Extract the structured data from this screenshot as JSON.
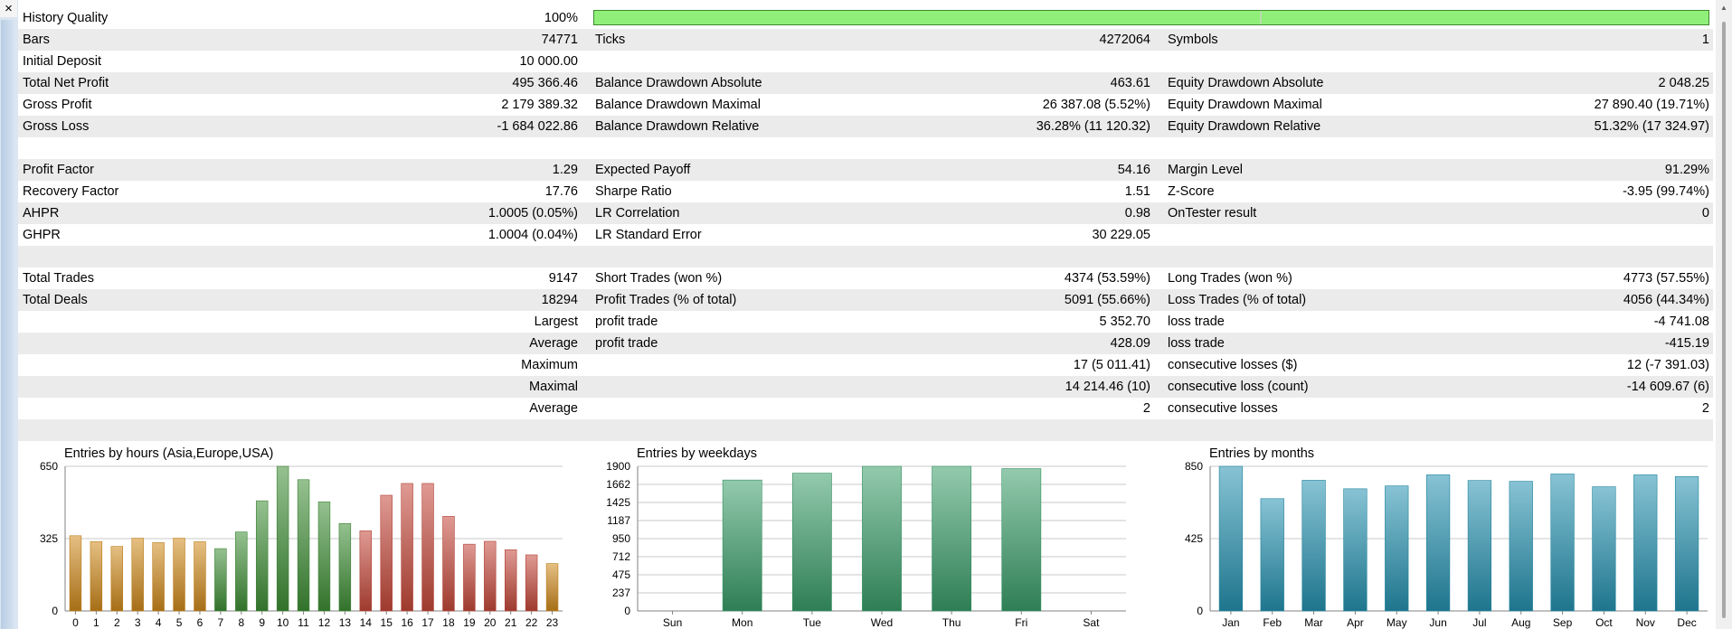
{
  "window": {
    "close_glyph": "×"
  },
  "summary": {
    "history_quality": {
      "label": "History Quality",
      "value": "100%",
      "fraction": 1.0
    },
    "rows": [
      {
        "l1": "Bars",
        "v1": "74771",
        "l2": "Ticks",
        "v2": "4272064",
        "l3": "Symbols",
        "v3": "1"
      },
      {
        "l1": "Initial Deposit",
        "v1": "10 000.00",
        "l2": "",
        "v2": "",
        "l3": "",
        "v3": ""
      },
      {
        "l1": "Total Net Profit",
        "v1": "495 366.46",
        "l2": "Balance Drawdown Absolute",
        "v2": "463.61",
        "l3": "Equity Drawdown Absolute",
        "v3": "2 048.25"
      },
      {
        "l1": "Gross Profit",
        "v1": "2 179 389.32",
        "l2": "Balance Drawdown Maximal",
        "v2": "26 387.08 (5.52%)",
        "l3": "Equity Drawdown Maximal",
        "v3": "27 890.40 (19.71%)"
      },
      {
        "l1": "Gross Loss",
        "v1": "-1 684 022.86",
        "l2": "Balance Drawdown Relative",
        "v2": "36.28% (11 120.32)",
        "l3": "Equity Drawdown Relative",
        "v3": "51.32% (17 324.97)"
      },
      {
        "l1": "",
        "v1": "",
        "l2": "",
        "v2": "",
        "l3": "",
        "v3": ""
      },
      {
        "l1": "Profit Factor",
        "v1": "1.29",
        "l2": "Expected Payoff",
        "v2": "54.16",
        "l3": "Margin Level",
        "v3": "91.29%"
      },
      {
        "l1": "Recovery Factor",
        "v1": "17.76",
        "l2": "Sharpe Ratio",
        "v2": "1.51",
        "l3": "Z-Score",
        "v3": "-3.95 (99.74%)"
      },
      {
        "l1": "AHPR",
        "v1": "1.0005 (0.05%)",
        "l2": "LR Correlation",
        "v2": "0.98",
        "l3": "OnTester result",
        "v3": "0"
      },
      {
        "l1": "GHPR",
        "v1": "1.0004 (0.04%)",
        "l2": "LR Standard Error",
        "v2": "30 229.05",
        "l3": "",
        "v3": ""
      },
      {
        "l1": "",
        "v1": "",
        "l2": "",
        "v2": "",
        "l3": "",
        "v3": ""
      },
      {
        "l1": "Total Trades",
        "v1": "9147",
        "l2": "Short Trades (won %)",
        "v2": "4374 (53.59%)",
        "l3": "Long Trades (won %)",
        "v3": "4773 (57.55%)"
      },
      {
        "l1": "Total Deals",
        "v1": "18294",
        "l2": "Profit Trades (% of total)",
        "v2": "5091 (55.66%)",
        "l3": "Loss Trades (% of total)",
        "v3": "4056 (44.34%)"
      },
      {
        "l1": "",
        "v1": "Largest",
        "l2": "profit trade",
        "v2": "5 352.70",
        "l3": "loss trade",
        "v3": "-4 741.08"
      },
      {
        "l1": "",
        "v1": "Average",
        "l2": "profit trade",
        "v2": "428.09",
        "l3": "loss trade",
        "v3": "-415.19"
      },
      {
        "l1": "",
        "v1": "Maximum",
        "l2": "",
        "v2": "17 (5 011.41)",
        "l3": "consecutive losses ($)",
        "v3": "12 (-7 391.03)"
      },
      {
        "l1": "",
        "v1": "Maximal",
        "l2": "",
        "v2": "14 214.46 (10)",
        "l3": "consecutive loss (count)",
        "v3": "-14 609.67 (6)"
      },
      {
        "l1": "",
        "v1": "Average",
        "l2": "",
        "v2": "2",
        "l3": "consecutive losses",
        "v3": "2"
      },
      {
        "l1": "",
        "v1": "",
        "l2": "",
        "v2": "",
        "l3": "",
        "v3": ""
      }
    ]
  },
  "chart_data": [
    {
      "type": "bar",
      "title": "Entries by hours (Asia,Europe,USA)",
      "xlabel": "",
      "ylabel": "",
      "categories": [
        "0",
        "1",
        "2",
        "3",
        "4",
        "5",
        "6",
        "7",
        "8",
        "9",
        "10",
        "11",
        "12",
        "13",
        "14",
        "15",
        "16",
        "17",
        "18",
        "19",
        "20",
        "21",
        "22",
        "23"
      ],
      "values": [
        338,
        312,
        290,
        327,
        307,
        327,
        311,
        280,
        355,
        495,
        650,
        590,
        490,
        393,
        360,
        520,
        573,
        573,
        425,
        300,
        313,
        275,
        252,
        213
      ],
      "ylim": [
        0,
        650
      ],
      "yticks": [
        0,
        325,
        650
      ],
      "colors": [
        "#d08a1c",
        "#d08a1c",
        "#d08a1c",
        "#d08a1c",
        "#d08a1c",
        "#d08a1c",
        "#d08a1c",
        "#3f8f36",
        "#3f8f36",
        "#3f8f36",
        "#3f8f36",
        "#3f8f36",
        "#3f8f36",
        "#3f8f36",
        "#c5483a",
        "#c5483a",
        "#c5483a",
        "#c5483a",
        "#c5483a",
        "#c5483a",
        "#c5483a",
        "#c5483a",
        "#c5483a",
        "#d08a1c"
      ],
      "grid": true
    },
    {
      "type": "bar",
      "title": "Entries by weekdays",
      "xlabel": "",
      "ylabel": "",
      "categories": [
        "Sun",
        "Mon",
        "Tue",
        "Wed",
        "Thu",
        "Fri",
        "Sat"
      ],
      "values": [
        0,
        1720,
        1810,
        1900,
        1900,
        1870,
        0
      ],
      "ylim": [
        0,
        1900
      ],
      "yticks": [
        0,
        237,
        475,
        712,
        950,
        1187,
        1425,
        1662,
        1900
      ],
      "colors": [
        "#3a9e6a",
        "#3a9e6a",
        "#3a9e6a",
        "#3a9e6a",
        "#3a9e6a",
        "#3a9e6a",
        "#3a9e6a"
      ],
      "grid": true
    },
    {
      "type": "bar",
      "title": "Entries by months",
      "xlabel": "",
      "ylabel": "",
      "categories": [
        "Jan",
        "Feb",
        "Mar",
        "Apr",
        "May",
        "Jun",
        "Jul",
        "Aug",
        "Sep",
        "Oct",
        "Nov",
        "Dec"
      ],
      "values": [
        850,
        660,
        768,
        718,
        735,
        800,
        767,
        762,
        805,
        730,
        800,
        790
      ],
      "ylim": [
        0,
        850
      ],
      "yticks": [
        0,
        425,
        850
      ],
      "colors": [
        "#2592b0",
        "#2592b0",
        "#2592b0",
        "#2592b0",
        "#2592b0",
        "#2592b0",
        "#2592b0",
        "#2592b0",
        "#2592b0",
        "#2592b0",
        "#2592b0",
        "#2592b0"
      ],
      "grid": true
    }
  ]
}
